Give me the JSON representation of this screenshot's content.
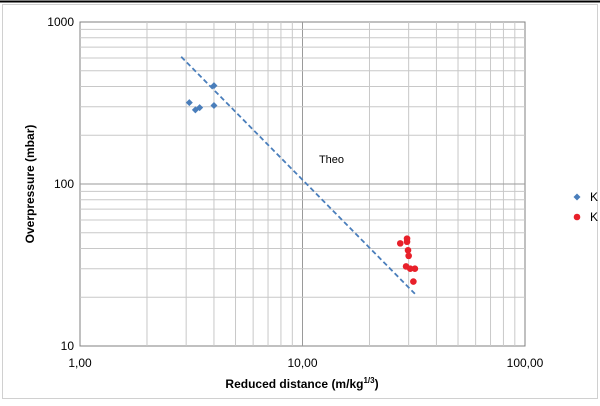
{
  "chart_data": {
    "type": "scatter",
    "xlabel": "Reduced distance (m/kg",
    "xlabel_sup": "1/3",
    "xlabel_end": ")",
    "ylabel": "Overpressure (mbar)",
    "x_scale": "log",
    "y_scale": "log",
    "xlim": [
      1,
      100
    ],
    "ylim": [
      10,
      1000
    ],
    "x_ticks": [
      {
        "value": 1,
        "label": "1,00"
      },
      {
        "value": 10,
        "label": "10,00"
      },
      {
        "value": 100,
        "label": "100,00"
      }
    ],
    "y_ticks": [
      {
        "value": 10,
        "label": "10"
      },
      {
        "value": 100,
        "label": "100"
      },
      {
        "value": 1000,
        "label": "1000"
      }
    ],
    "grid": true,
    "legend_position": "right",
    "series": [
      {
        "name": "K",
        "marker": "diamond",
        "color": "#4a7ebb",
        "points": [
          {
            "x": 3.1,
            "y": 318
          },
          {
            "x": 3.3,
            "y": 287
          },
          {
            "x": 3.45,
            "y": 296
          },
          {
            "x": 4.0,
            "y": 405
          },
          {
            "x": 4.0,
            "y": 305
          }
        ]
      },
      {
        "name": "K",
        "marker": "circle",
        "color": "#e8202a",
        "points": [
          {
            "x": 27.5,
            "y": 43
          },
          {
            "x": 29.5,
            "y": 46
          },
          {
            "x": 29.5,
            "y": 44
          },
          {
            "x": 29.8,
            "y": 39
          },
          {
            "x": 30.0,
            "y": 36
          },
          {
            "x": 29.2,
            "y": 31
          },
          {
            "x": 30.5,
            "y": 30
          },
          {
            "x": 32.0,
            "y": 30
          },
          {
            "x": 31.5,
            "y": 25
          }
        ]
      }
    ],
    "trend_line": {
      "label": "Theo",
      "color": "#4a7ebb",
      "style": "dashed",
      "points": [
        {
          "x": 2.85,
          "y": 610
        },
        {
          "x": 32.0,
          "y": 21
        }
      ]
    },
    "annotation": {
      "text": "Theo",
      "x": 13.5,
      "y": 135
    }
  }
}
